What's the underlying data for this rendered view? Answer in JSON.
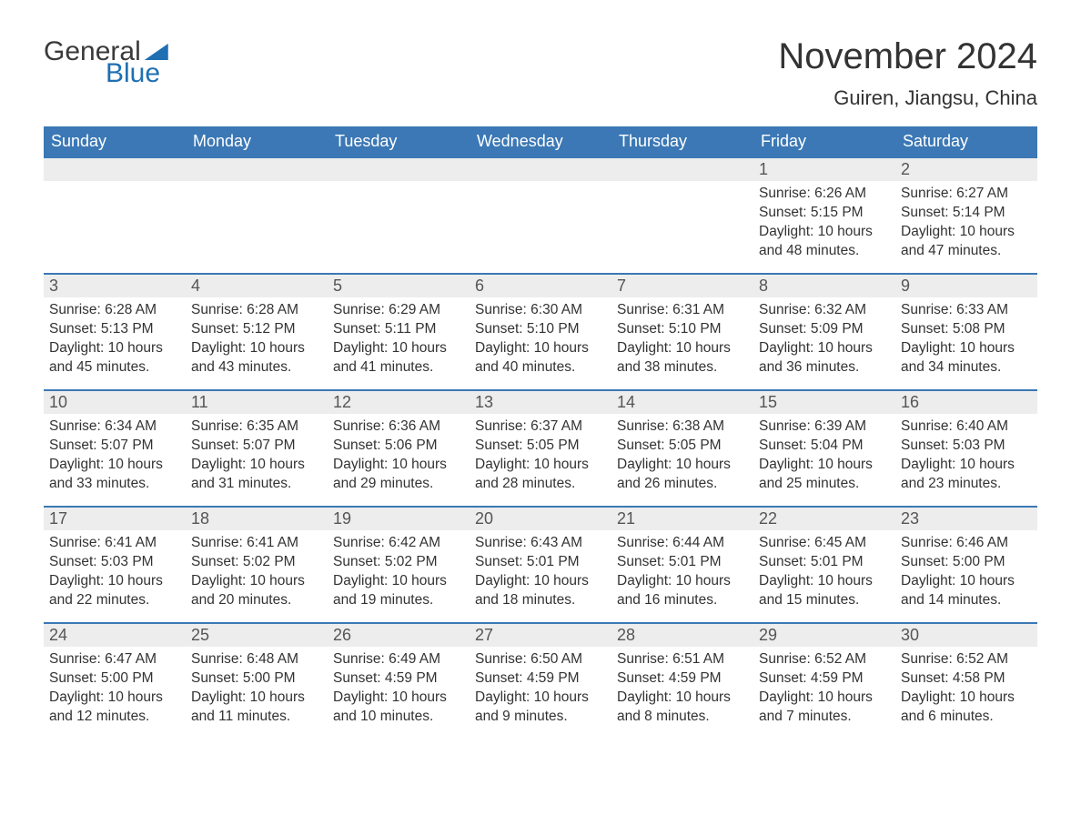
{
  "logo": {
    "text_general": "General",
    "text_blue": "Blue",
    "general_color": "#3a3a3a",
    "blue_color": "#1f6fb2"
  },
  "header": {
    "month_title": "November 2024",
    "location": "Guiren, Jiangsu, China",
    "title_fontsize": 40,
    "location_fontsize": 22,
    "text_color": "#333333"
  },
  "styling": {
    "header_bg": "#3b78b5",
    "header_text": "#ffffff",
    "daynum_bg": "#ededed",
    "daynum_border_top": "#3b78b5",
    "body_bg": "#ffffff",
    "cell_text_color": "#333333",
    "header_fontsize": 18,
    "daynum_fontsize": 18,
    "body_fontsize": 15.5
  },
  "columns": [
    "Sunday",
    "Monday",
    "Tuesday",
    "Wednesday",
    "Thursday",
    "Friday",
    "Saturday"
  ],
  "weeks": [
    [
      null,
      null,
      null,
      null,
      null,
      {
        "n": "1",
        "sunrise": "6:26 AM",
        "sunset": "5:15 PM",
        "dl": "10 hours and 48 minutes."
      },
      {
        "n": "2",
        "sunrise": "6:27 AM",
        "sunset": "5:14 PM",
        "dl": "10 hours and 47 minutes."
      }
    ],
    [
      {
        "n": "3",
        "sunrise": "6:28 AM",
        "sunset": "5:13 PM",
        "dl": "10 hours and 45 minutes."
      },
      {
        "n": "4",
        "sunrise": "6:28 AM",
        "sunset": "5:12 PM",
        "dl": "10 hours and 43 minutes."
      },
      {
        "n": "5",
        "sunrise": "6:29 AM",
        "sunset": "5:11 PM",
        "dl": "10 hours and 41 minutes."
      },
      {
        "n": "6",
        "sunrise": "6:30 AM",
        "sunset": "5:10 PM",
        "dl": "10 hours and 40 minutes."
      },
      {
        "n": "7",
        "sunrise": "6:31 AM",
        "sunset": "5:10 PM",
        "dl": "10 hours and 38 minutes."
      },
      {
        "n": "8",
        "sunrise": "6:32 AM",
        "sunset": "5:09 PM",
        "dl": "10 hours and 36 minutes."
      },
      {
        "n": "9",
        "sunrise": "6:33 AM",
        "sunset": "5:08 PM",
        "dl": "10 hours and 34 minutes."
      }
    ],
    [
      {
        "n": "10",
        "sunrise": "6:34 AM",
        "sunset": "5:07 PM",
        "dl": "10 hours and 33 minutes."
      },
      {
        "n": "11",
        "sunrise": "6:35 AM",
        "sunset": "5:07 PM",
        "dl": "10 hours and 31 minutes."
      },
      {
        "n": "12",
        "sunrise": "6:36 AM",
        "sunset": "5:06 PM",
        "dl": "10 hours and 29 minutes."
      },
      {
        "n": "13",
        "sunrise": "6:37 AM",
        "sunset": "5:05 PM",
        "dl": "10 hours and 28 minutes."
      },
      {
        "n": "14",
        "sunrise": "6:38 AM",
        "sunset": "5:05 PM",
        "dl": "10 hours and 26 minutes."
      },
      {
        "n": "15",
        "sunrise": "6:39 AM",
        "sunset": "5:04 PM",
        "dl": "10 hours and 25 minutes."
      },
      {
        "n": "16",
        "sunrise": "6:40 AM",
        "sunset": "5:03 PM",
        "dl": "10 hours and 23 minutes."
      }
    ],
    [
      {
        "n": "17",
        "sunrise": "6:41 AM",
        "sunset": "5:03 PM",
        "dl": "10 hours and 22 minutes."
      },
      {
        "n": "18",
        "sunrise": "6:41 AM",
        "sunset": "5:02 PM",
        "dl": "10 hours and 20 minutes."
      },
      {
        "n": "19",
        "sunrise": "6:42 AM",
        "sunset": "5:02 PM",
        "dl": "10 hours and 19 minutes."
      },
      {
        "n": "20",
        "sunrise": "6:43 AM",
        "sunset": "5:01 PM",
        "dl": "10 hours and 18 minutes."
      },
      {
        "n": "21",
        "sunrise": "6:44 AM",
        "sunset": "5:01 PM",
        "dl": "10 hours and 16 minutes."
      },
      {
        "n": "22",
        "sunrise": "6:45 AM",
        "sunset": "5:01 PM",
        "dl": "10 hours and 15 minutes."
      },
      {
        "n": "23",
        "sunrise": "6:46 AM",
        "sunset": "5:00 PM",
        "dl": "10 hours and 14 minutes."
      }
    ],
    [
      {
        "n": "24",
        "sunrise": "6:47 AM",
        "sunset": "5:00 PM",
        "dl": "10 hours and 12 minutes."
      },
      {
        "n": "25",
        "sunrise": "6:48 AM",
        "sunset": "5:00 PM",
        "dl": "10 hours and 11 minutes."
      },
      {
        "n": "26",
        "sunrise": "6:49 AM",
        "sunset": "4:59 PM",
        "dl": "10 hours and 10 minutes."
      },
      {
        "n": "27",
        "sunrise": "6:50 AM",
        "sunset": "4:59 PM",
        "dl": "10 hours and 9 minutes."
      },
      {
        "n": "28",
        "sunrise": "6:51 AM",
        "sunset": "4:59 PM",
        "dl": "10 hours and 8 minutes."
      },
      {
        "n": "29",
        "sunrise": "6:52 AM",
        "sunset": "4:59 PM",
        "dl": "10 hours and 7 minutes."
      },
      {
        "n": "30",
        "sunrise": "6:52 AM",
        "sunset": "4:58 PM",
        "dl": "10 hours and 6 minutes."
      }
    ]
  ],
  "labels": {
    "sunrise": "Sunrise: ",
    "sunset": "Sunset: ",
    "daylight": "Daylight: "
  }
}
